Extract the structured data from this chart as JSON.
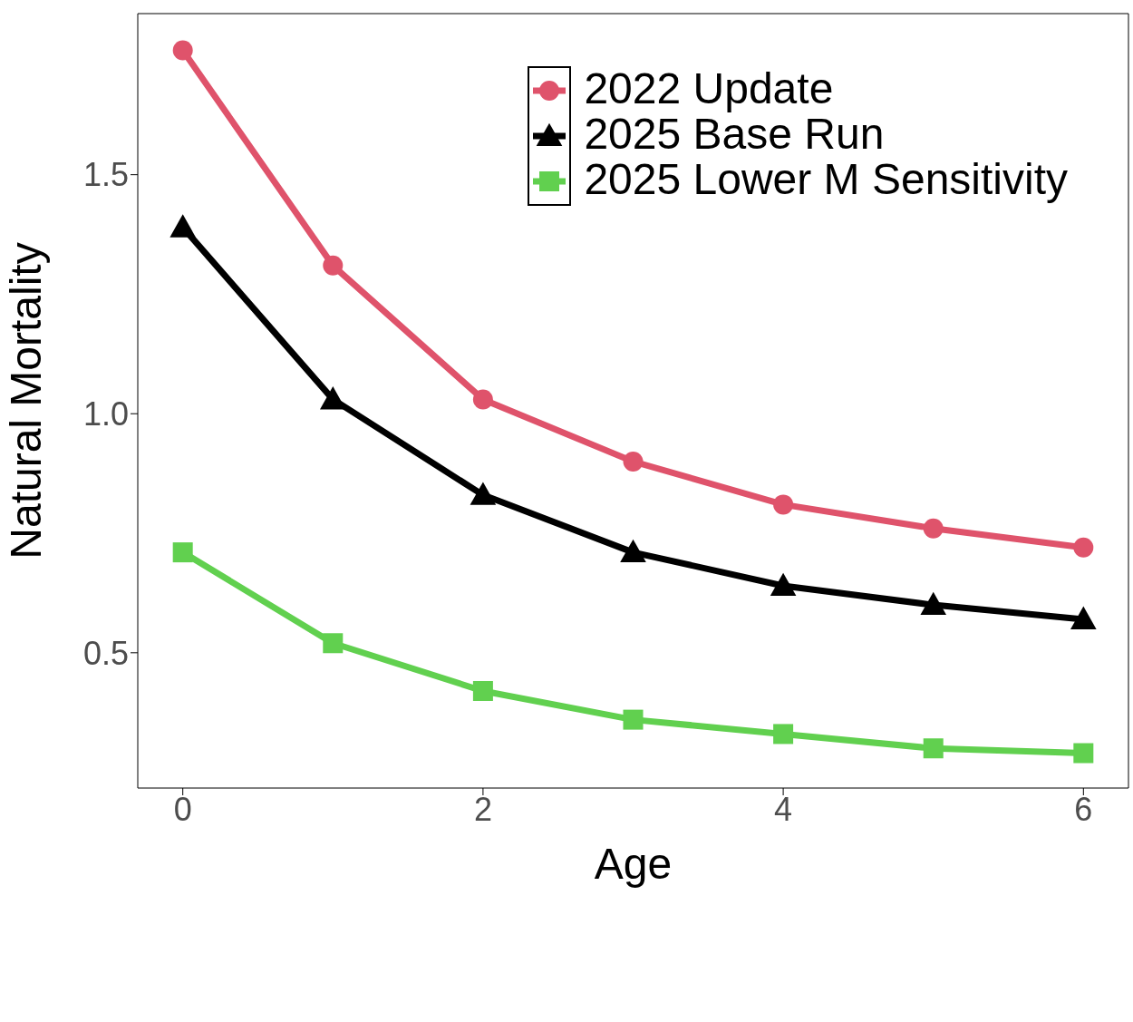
{
  "chart_data": {
    "type": "line",
    "xlabel": "Age",
    "ylabel": "Natural Mortality",
    "x": [
      0,
      1,
      2,
      3,
      4,
      5,
      6
    ],
    "xlim": [
      -0.3,
      6.3
    ],
    "xticks": [
      0,
      2,
      4,
      6
    ],
    "ylim": [
      0.217,
      1.837
    ],
    "yticks": [
      {
        "value": 0.5,
        "label": "0.5"
      },
      {
        "value": 1.0,
        "label": "1.0"
      },
      {
        "value": 1.5,
        "label": "1.5"
      }
    ],
    "grid": false,
    "legend": "top right",
    "line_style": "solid",
    "series": [
      {
        "name": "2022 Update",
        "color": "#df536b",
        "marker": "circle",
        "values": [
          1.76,
          1.31,
          1.03,
          0.9,
          0.81,
          0.76,
          0.72
        ]
      },
      {
        "name": "2025 Base Run",
        "color": "#000000",
        "marker": "triangle",
        "values": [
          1.39,
          1.03,
          0.83,
          0.71,
          0.64,
          0.6,
          0.57
        ]
      },
      {
        "name": "2025 Lower M Sensitivity",
        "color": "#61d04f",
        "marker": "square",
        "values": [
          0.71,
          0.52,
          0.42,
          0.36,
          0.33,
          0.3,
          0.29
        ]
      }
    ]
  }
}
